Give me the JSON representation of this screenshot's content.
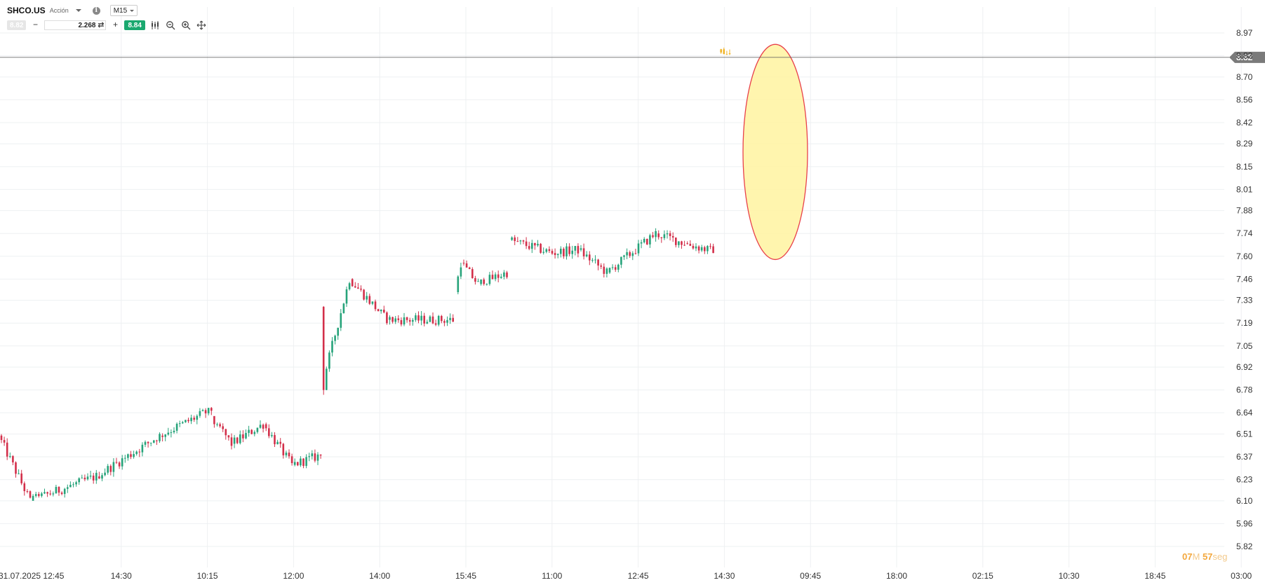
{
  "toolbar": {
    "symbol": "SHCO.US",
    "instrument_type": "Acción",
    "info_icon": "info-icon",
    "timeframe": "M15",
    "sell_price": "8.82",
    "quantity": "2.268",
    "buy_price": "8.84",
    "tools": [
      "candlestick-icon",
      "zoom-out-icon",
      "zoom-in-icon",
      "move-icon"
    ]
  },
  "countdown": {
    "minutes": "07",
    "minutes_unit": "M",
    "seconds": "57",
    "seconds_unit": "seg"
  },
  "colors": {
    "up": "#26a37a",
    "down": "#d32f4a",
    "highlight_fill": "#fff3a0",
    "highlight_stroke": "#e8404a",
    "price_tag": "#7a7a7a"
  },
  "chart_data": {
    "type": "candlestick",
    "symbol": "SHCO.US",
    "timeframe": "M15",
    "ylim": [
      5.82,
      8.97
    ],
    "y_ticks": [
      8.97,
      8.83,
      8.7,
      8.56,
      8.42,
      8.29,
      8.15,
      8.01,
      7.88,
      7.74,
      7.6,
      7.46,
      7.33,
      7.19,
      7.05,
      6.92,
      6.78,
      6.64,
      6.51,
      6.37,
      6.23,
      6.1,
      5.96,
      5.82
    ],
    "x_ticks": [
      "31.07.2025 12:45",
      "14:30",
      "10:15",
      "12:00",
      "14:00",
      "15:45",
      "11:00",
      "12:45",
      "14:30",
      "09:45",
      "18:00",
      "02:15",
      "10:30",
      "18:45",
      "03:00"
    ],
    "current_price": 8.82,
    "current_price_label": "8.82",
    "segments": [
      {
        "from": 6.5,
        "to": 6.1,
        "low": 6.08,
        "high": 6.51
      },
      {
        "from": 6.1,
        "to": 6.25,
        "low": 6.12,
        "high": 6.29
      },
      {
        "from": 6.25,
        "to": 6.5,
        "low": 6.22,
        "high": 6.52
      },
      {
        "from": 6.5,
        "to": 6.66,
        "low": 6.4,
        "high": 6.68
      },
      {
        "from": 6.62,
        "to": 6.45,
        "low": 6.33,
        "high": 6.58
      },
      {
        "from": 6.45,
        "to": 6.57,
        "low": 6.42,
        "high": 6.6
      },
      {
        "from": 6.57,
        "to": 6.32,
        "low": 6.3,
        "high": 6.58
      },
      {
        "from": 6.32,
        "to": 6.38,
        "low": 6.3,
        "high": 6.47
      },
      {
        "from": 6.78,
        "to": 7.46,
        "low": 6.71,
        "high": 7.48
      },
      {
        "from": 7.46,
        "to": 7.21,
        "low": 7.18,
        "high": 7.47
      },
      {
        "from": 7.21,
        "to": 7.21,
        "low": 7.17,
        "high": 7.28
      },
      {
        "from": 7.38,
        "to": 7.56,
        "low": 7.36,
        "high": 7.6
      },
      {
        "from": 7.56,
        "to": 7.43,
        "low": 7.4,
        "high": 7.58
      },
      {
        "from": 7.43,
        "to": 7.5,
        "low": 7.42,
        "high": 7.52
      },
      {
        "from": 7.7,
        "to": 7.62,
        "low": 7.58,
        "high": 7.73
      },
      {
        "from": 7.62,
        "to": 7.64,
        "low": 7.58,
        "high": 7.68
      },
      {
        "from": 7.64,
        "to": 7.5,
        "low": 7.47,
        "high": 7.72
      },
      {
        "from": 7.5,
        "to": 7.74,
        "low": 7.48,
        "high": 7.78
      },
      {
        "from": 7.74,
        "to": 7.68,
        "low": 7.62,
        "high": 7.76
      },
      {
        "from": 7.68,
        "to": 7.63,
        "low": 7.61,
        "high": 7.7
      },
      {
        "from": 8.85,
        "to": 8.84,
        "low": 8.83,
        "high": 8.88
      }
    ],
    "highlight": {
      "type": "ellipse",
      "from_value": 7.58,
      "to_value": 8.9
    }
  }
}
